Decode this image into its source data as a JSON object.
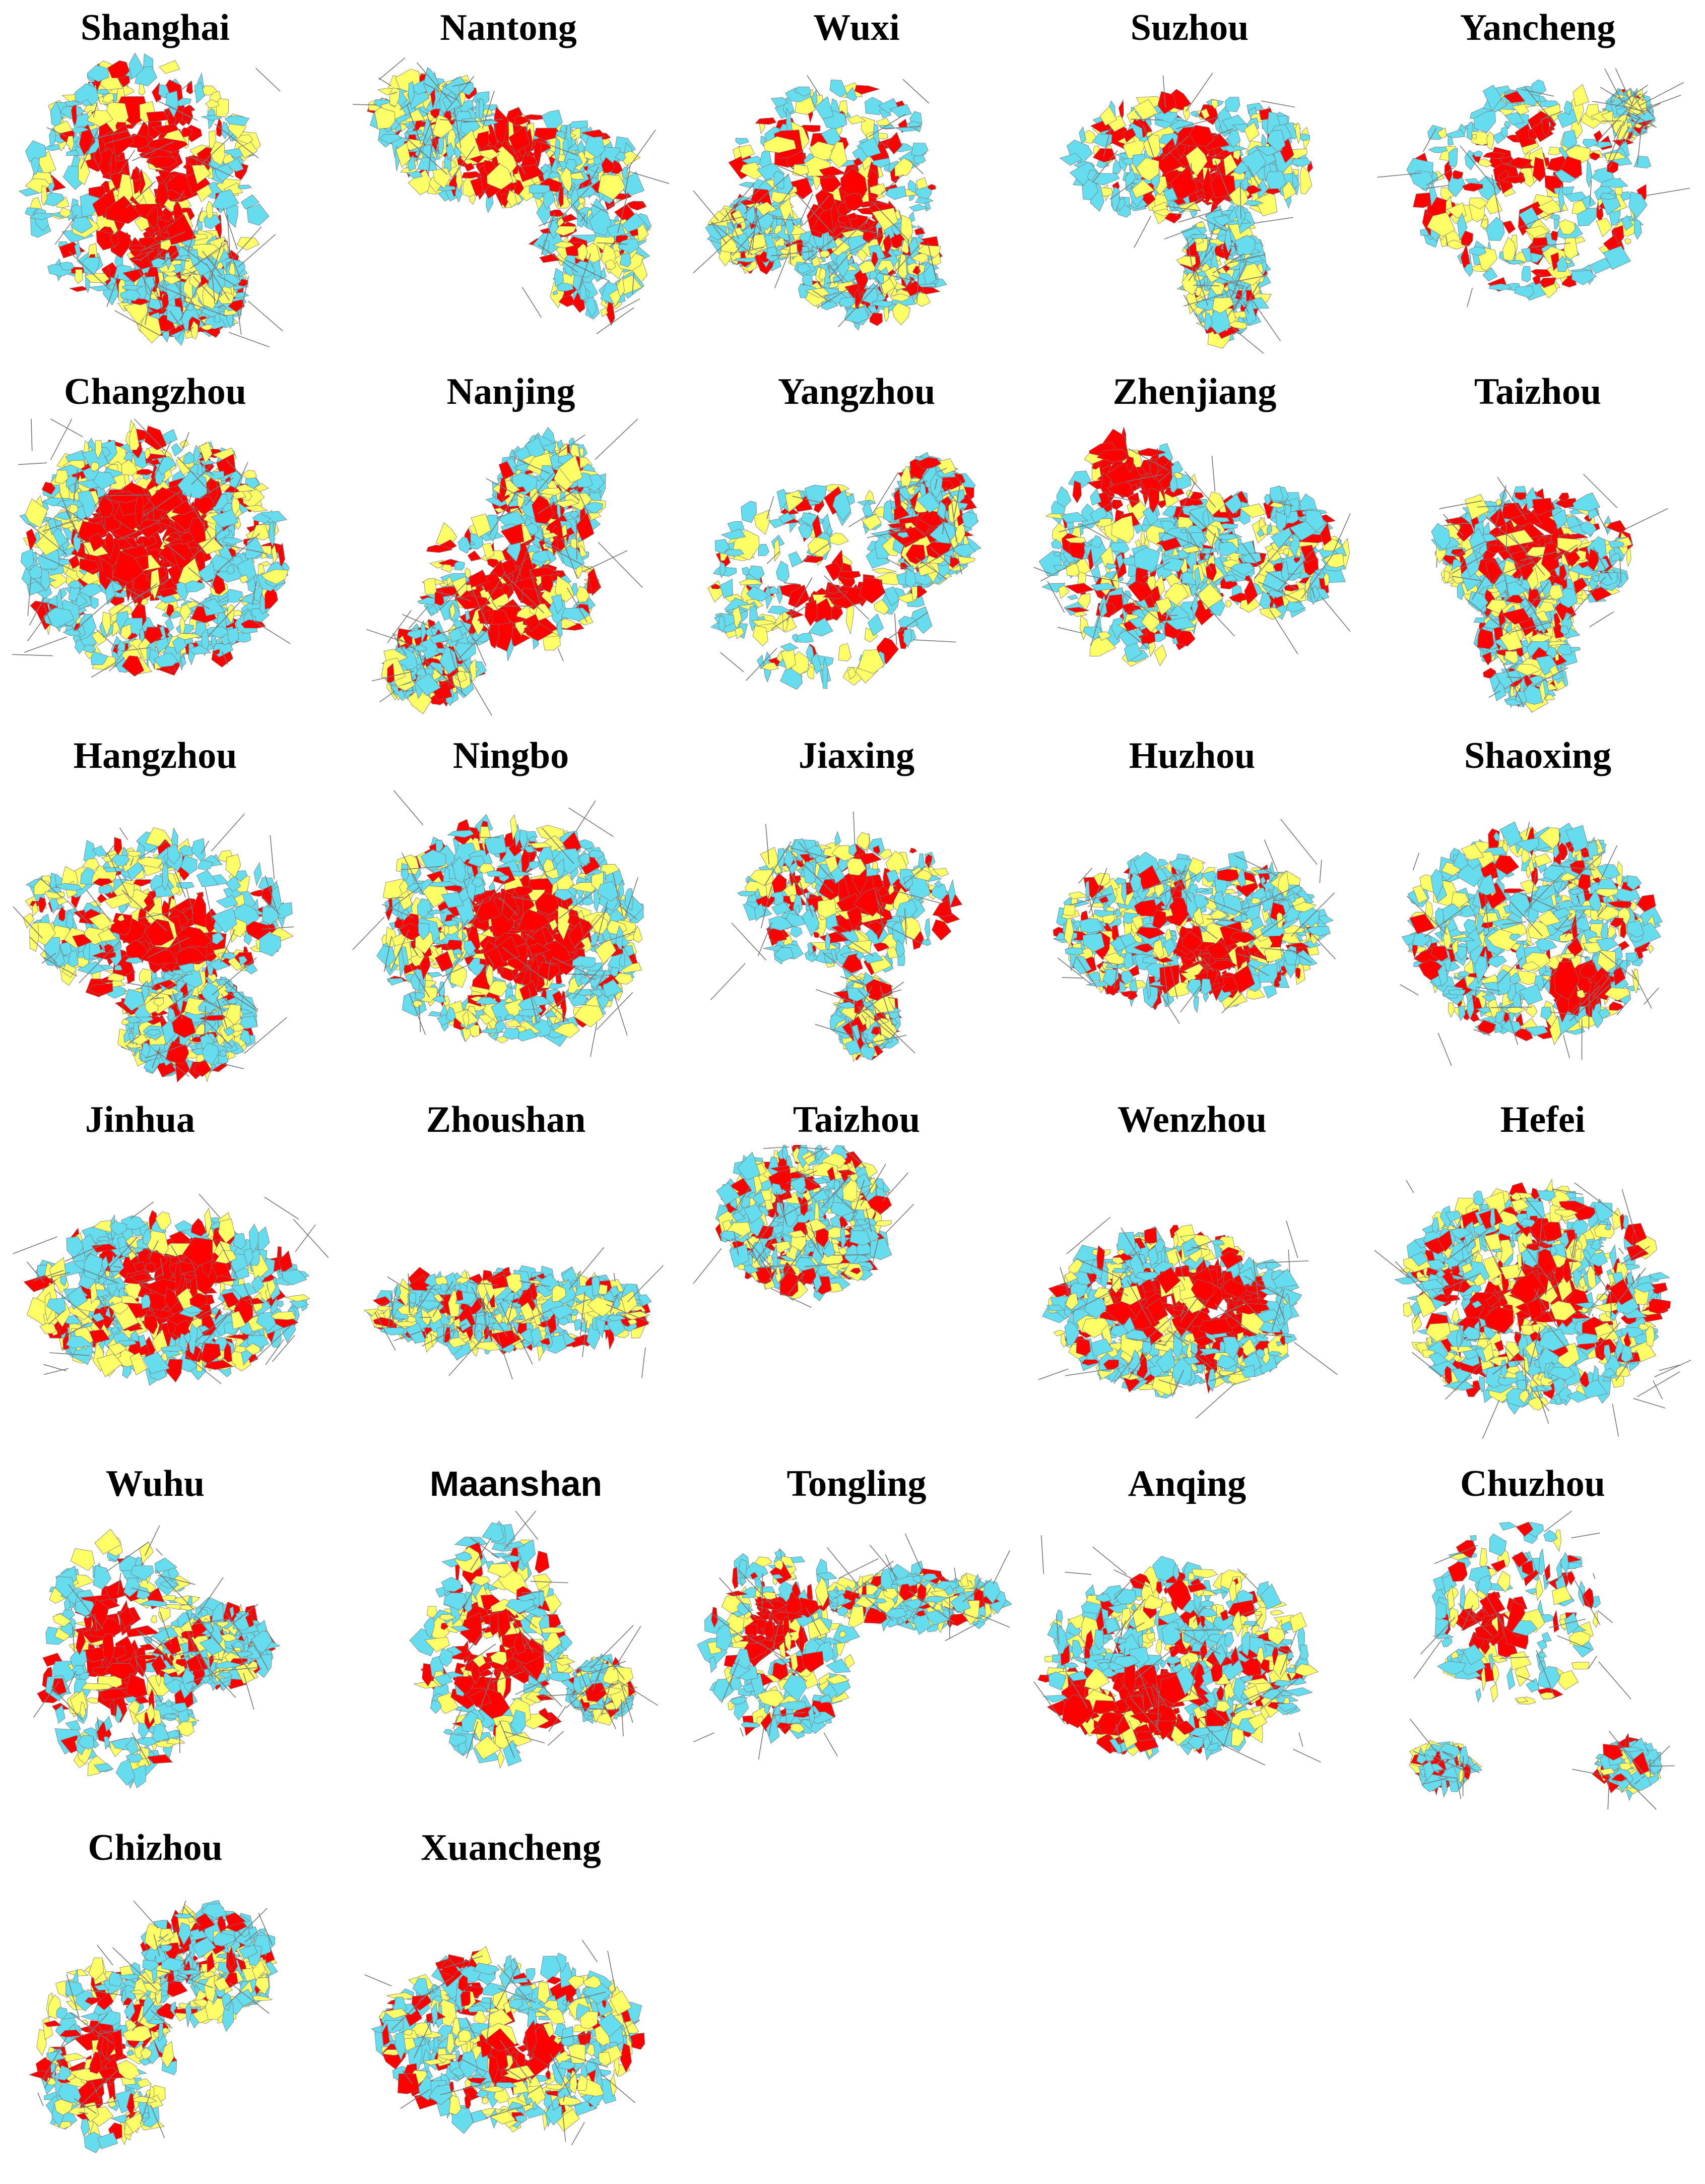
{
  "colors": {
    "core_built_up": "#ff0000",
    "transition_zone": "#ffff66",
    "outer_area": "#66ddee",
    "roads": "#777777"
  },
  "cities": [
    {
      "name": "Shanghai"
    },
    {
      "name": "Nantong"
    },
    {
      "name": "Wuxi"
    },
    {
      "name": "Suzhou"
    },
    {
      "name": "Yancheng"
    },
    {
      "name": "Changzhou"
    },
    {
      "name": "Nanjing"
    },
    {
      "name": "Yangzhou"
    },
    {
      "name": "Zhenjiang"
    },
    {
      "name": "Taizhou"
    },
    {
      "name": "Hangzhou"
    },
    {
      "name": "Ningbo"
    },
    {
      "name": "Jiaxing"
    },
    {
      "name": "Huzhou"
    },
    {
      "name": "Shaoxing"
    },
    {
      "name": "Jinhua"
    },
    {
      "name": "Zhoushan"
    },
    {
      "name": "Taizhou"
    },
    {
      "name": "Wenzhou"
    },
    {
      "name": "Hefei"
    },
    {
      "name": "Wuhu"
    },
    {
      "name": "Maanshan"
    },
    {
      "name": "Tongling"
    },
    {
      "name": "Anqing"
    },
    {
      "name": "Chuzhou"
    },
    {
      "name": "Chizhou"
    },
    {
      "name": "Xuancheng"
    }
  ]
}
